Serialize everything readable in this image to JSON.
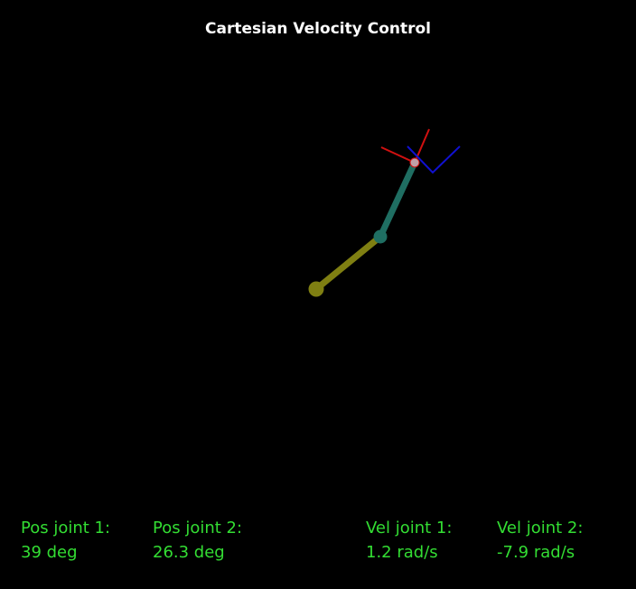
{
  "title": "Cartesian Velocity Control",
  "robot": {
    "joint1_angle_deg": 39,
    "joint2_angle_deg": 26.3,
    "link1_color": "#7f7f12",
    "link2_color": "#1f6e62",
    "tip_color": "#c0a0a8",
    "frame_x_color": "#d01010",
    "frame_y_color": "#1010d0"
  },
  "readouts": [
    {
      "label": "Pos joint 1:",
      "value": "39 deg"
    },
    {
      "label": "Pos joint 2:",
      "value": "26.3 deg"
    },
    {
      "label": "Vel joint 1:",
      "value": "1.2 rad/s"
    },
    {
      "label": "Vel joint 2:",
      "value": "-7.9 rad/s"
    }
  ],
  "colors": {
    "background": "#000000",
    "title": "#ffffff",
    "readout": "#33dd33"
  }
}
